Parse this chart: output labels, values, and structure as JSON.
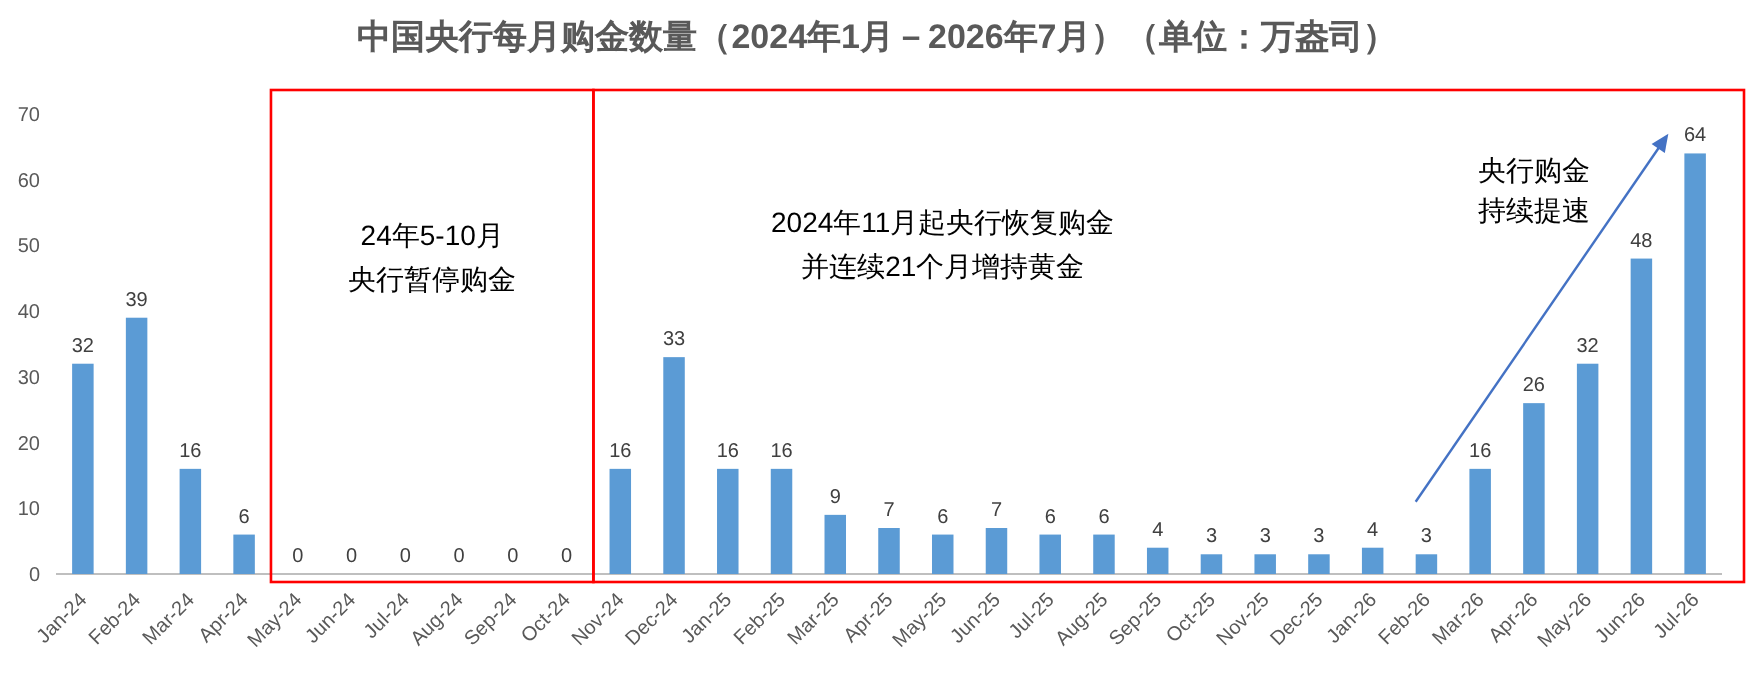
{
  "chart_data": {
    "type": "bar",
    "title": "中国央行每月购金数量（2024年1月－2026年7月）（单位：万盎司）",
    "categories": [
      "Jan-24",
      "Feb-24",
      "Mar-24",
      "Apr-24",
      "May-24",
      "Jun-24",
      "Jul-24",
      "Aug-24",
      "Sep-24",
      "Oct-24",
      "Nov-24",
      "Dec-24",
      "Jan-25",
      "Feb-25",
      "Mar-25",
      "Apr-25",
      "May-25",
      "Jun-25",
      "Jul-25",
      "Aug-25",
      "Sep-25",
      "Oct-25",
      "Nov-25",
      "Dec-25",
      "Jan-26",
      "Feb-26",
      "Mar-26",
      "Apr-26",
      "May-26",
      "Jun-26",
      "Jul-26"
    ],
    "values": [
      32,
      39,
      16,
      6,
      0,
      0,
      0,
      0,
      0,
      0,
      16,
      33,
      16,
      16,
      9,
      7,
      6,
      7,
      6,
      6,
      4,
      3,
      3,
      3,
      4,
      3,
      16,
      26,
      32,
      48,
      64
    ],
    "color": "#5b9bd5",
    "ylim": [
      0,
      70
    ],
    "yticks": [
      0,
      10,
      20,
      30,
      40,
      50,
      60,
      70
    ],
    "grid": false,
    "data_labels": true,
    "annotations": [
      "24年5-10月",
      "央行暂停购金",
      "2024年11月起央行恢复购金",
      "并连续21个月增持黄金",
      "央行购金",
      "持续提速"
    ]
  }
}
